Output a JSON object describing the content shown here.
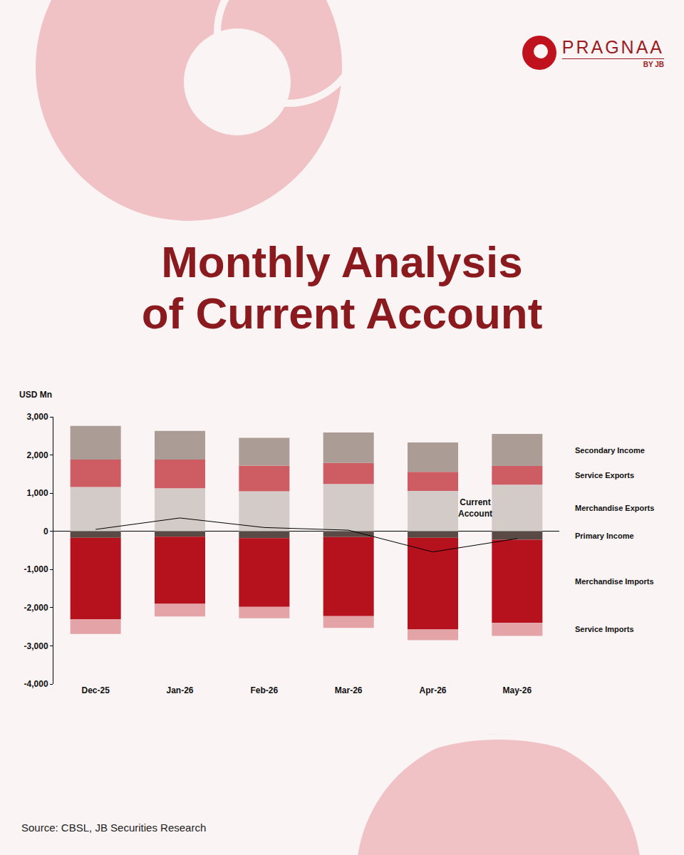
{
  "brand": "PRAGNAA",
  "brand_sub": "BY JB",
  "source": "Source: CBSL, JB Securities Research",
  "chart_data": {
    "type": "bar",
    "title": "Monthly Analysis of Current Account",
    "y_label": "USD Mn",
    "stacked": true,
    "grid": false,
    "categories": [
      "Dec-25",
      "Jan-26",
      "Feb-26",
      "Mar-26",
      "Apr-26",
      "May-26"
    ],
    "series": [
      {
        "name": "Merchandise Exports",
        "color": "#d3cbc8",
        "values": [
          1160,
          1130,
          1050,
          1240,
          1060,
          1220
        ]
      },
      {
        "name": "Service Exports",
        "color": "#cd5c63",
        "values": [
          720,
          750,
          670,
          550,
          500,
          490
        ]
      },
      {
        "name": "Secondary Income",
        "color": "#ab9d96",
        "values": [
          880,
          750,
          730,
          800,
          770,
          840
        ]
      },
      {
        "name": "Primary Income",
        "color": "#5a4a45",
        "values": [
          -170,
          -140,
          -180,
          -150,
          -170,
          -220
        ]
      },
      {
        "name": "Merchandise Imports",
        "color": "#b5121e",
        "values": [
          -2130,
          -1760,
          -1800,
          -2070,
          -2400,
          -2180
        ]
      },
      {
        "name": "Service Imports",
        "color": "#e4a4a7",
        "values": [
          -390,
          -330,
          -300,
          -310,
          -280,
          -340
        ]
      },
      {
        "name": "Current Account",
        "type": "line",
        "color": "#000000",
        "values": [
          50,
          350,
          100,
          30,
          -540,
          -190
        ]
      }
    ],
    "ylim": [
      -4000,
      3000
    ],
    "yticks": [
      {
        "value": -4000,
        "label": "-4,000"
      },
      {
        "value": -3000,
        "label": "-3,000"
      },
      {
        "value": -2000,
        "label": "-2,000"
      },
      {
        "value": -1000,
        "label": "-1,000"
      },
      0,
      {
        "value": 1000,
        "label": "1,000"
      },
      {
        "value": 2000,
        "label": "2,000"
      },
      {
        "value": 3000,
        "label": "3,000"
      }
    ]
  }
}
